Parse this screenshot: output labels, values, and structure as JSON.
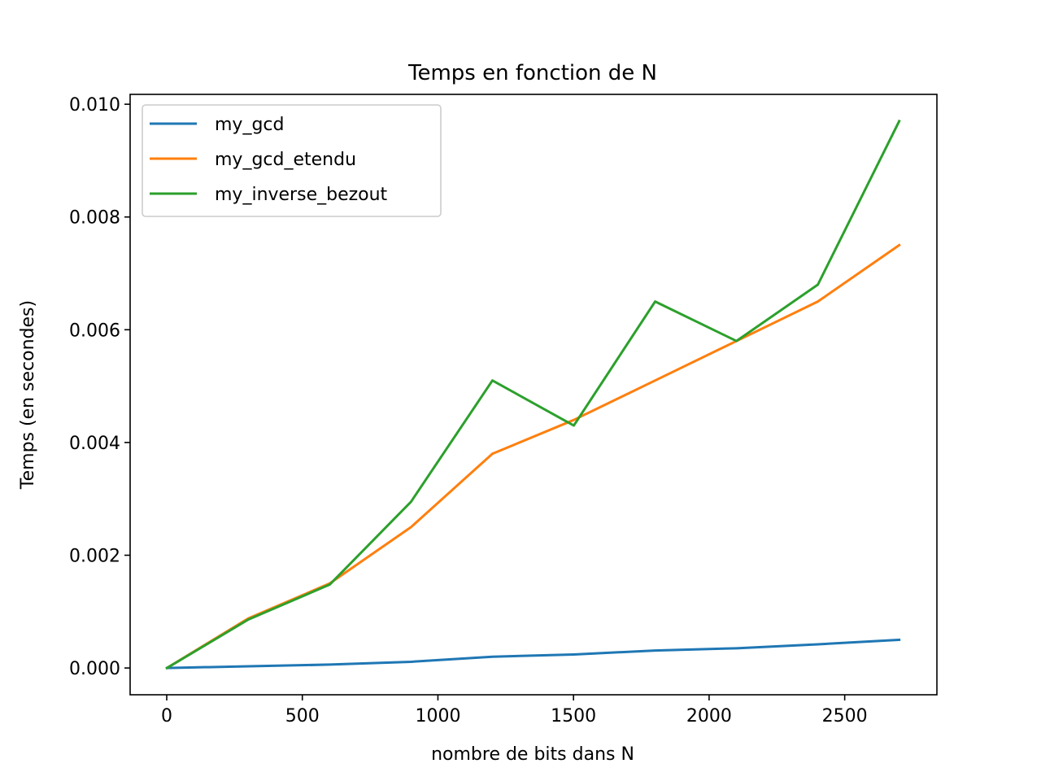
{
  "chart_data": {
    "type": "line",
    "title": "Temps en fonction de N",
    "xlabel": "nombre de bits dans N",
    "ylabel": "Temps (en secondes)",
    "xlim": [
      -135,
      2840
    ],
    "ylim": [
      -0.000475,
      0.010175
    ],
    "xticks": [
      0,
      500,
      1000,
      1500,
      2000,
      2500
    ],
    "xtick_labels": [
      "0",
      "500",
      "1000",
      "1500",
      "2000",
      "2500"
    ],
    "yticks": [
      0.0,
      0.002,
      0.004,
      0.006,
      0.008,
      0.01
    ],
    "ytick_labels": [
      "0.000",
      "0.002",
      "0.004",
      "0.006",
      "0.008",
      "0.010"
    ],
    "grid": false,
    "legend_position": "top-left",
    "x": [
      1,
      301,
      601,
      901,
      1201,
      1501,
      1801,
      2101,
      2401,
      2701
    ],
    "series": [
      {
        "name": "my_gcd",
        "color": "#1f77b4",
        "values": [
          0.0,
          3e-05,
          6e-05,
          0.00011,
          0.0002,
          0.00024,
          0.00031,
          0.00035,
          0.00042,
          0.0005
        ]
      },
      {
        "name": "my_gcd_etendu",
        "color": "#ff7f0e",
        "values": [
          0.0,
          0.00088,
          0.0015,
          0.0025,
          0.0038,
          0.0044,
          0.0051,
          0.0058,
          0.0065,
          0.0075
        ]
      },
      {
        "name": "my_inverse_bezout",
        "color": "#2ca02c",
        "values": [
          0.0,
          0.00086,
          0.00148,
          0.00295,
          0.0051,
          0.0043,
          0.0065,
          0.0058,
          0.0068,
          0.0097
        ]
      }
    ]
  }
}
